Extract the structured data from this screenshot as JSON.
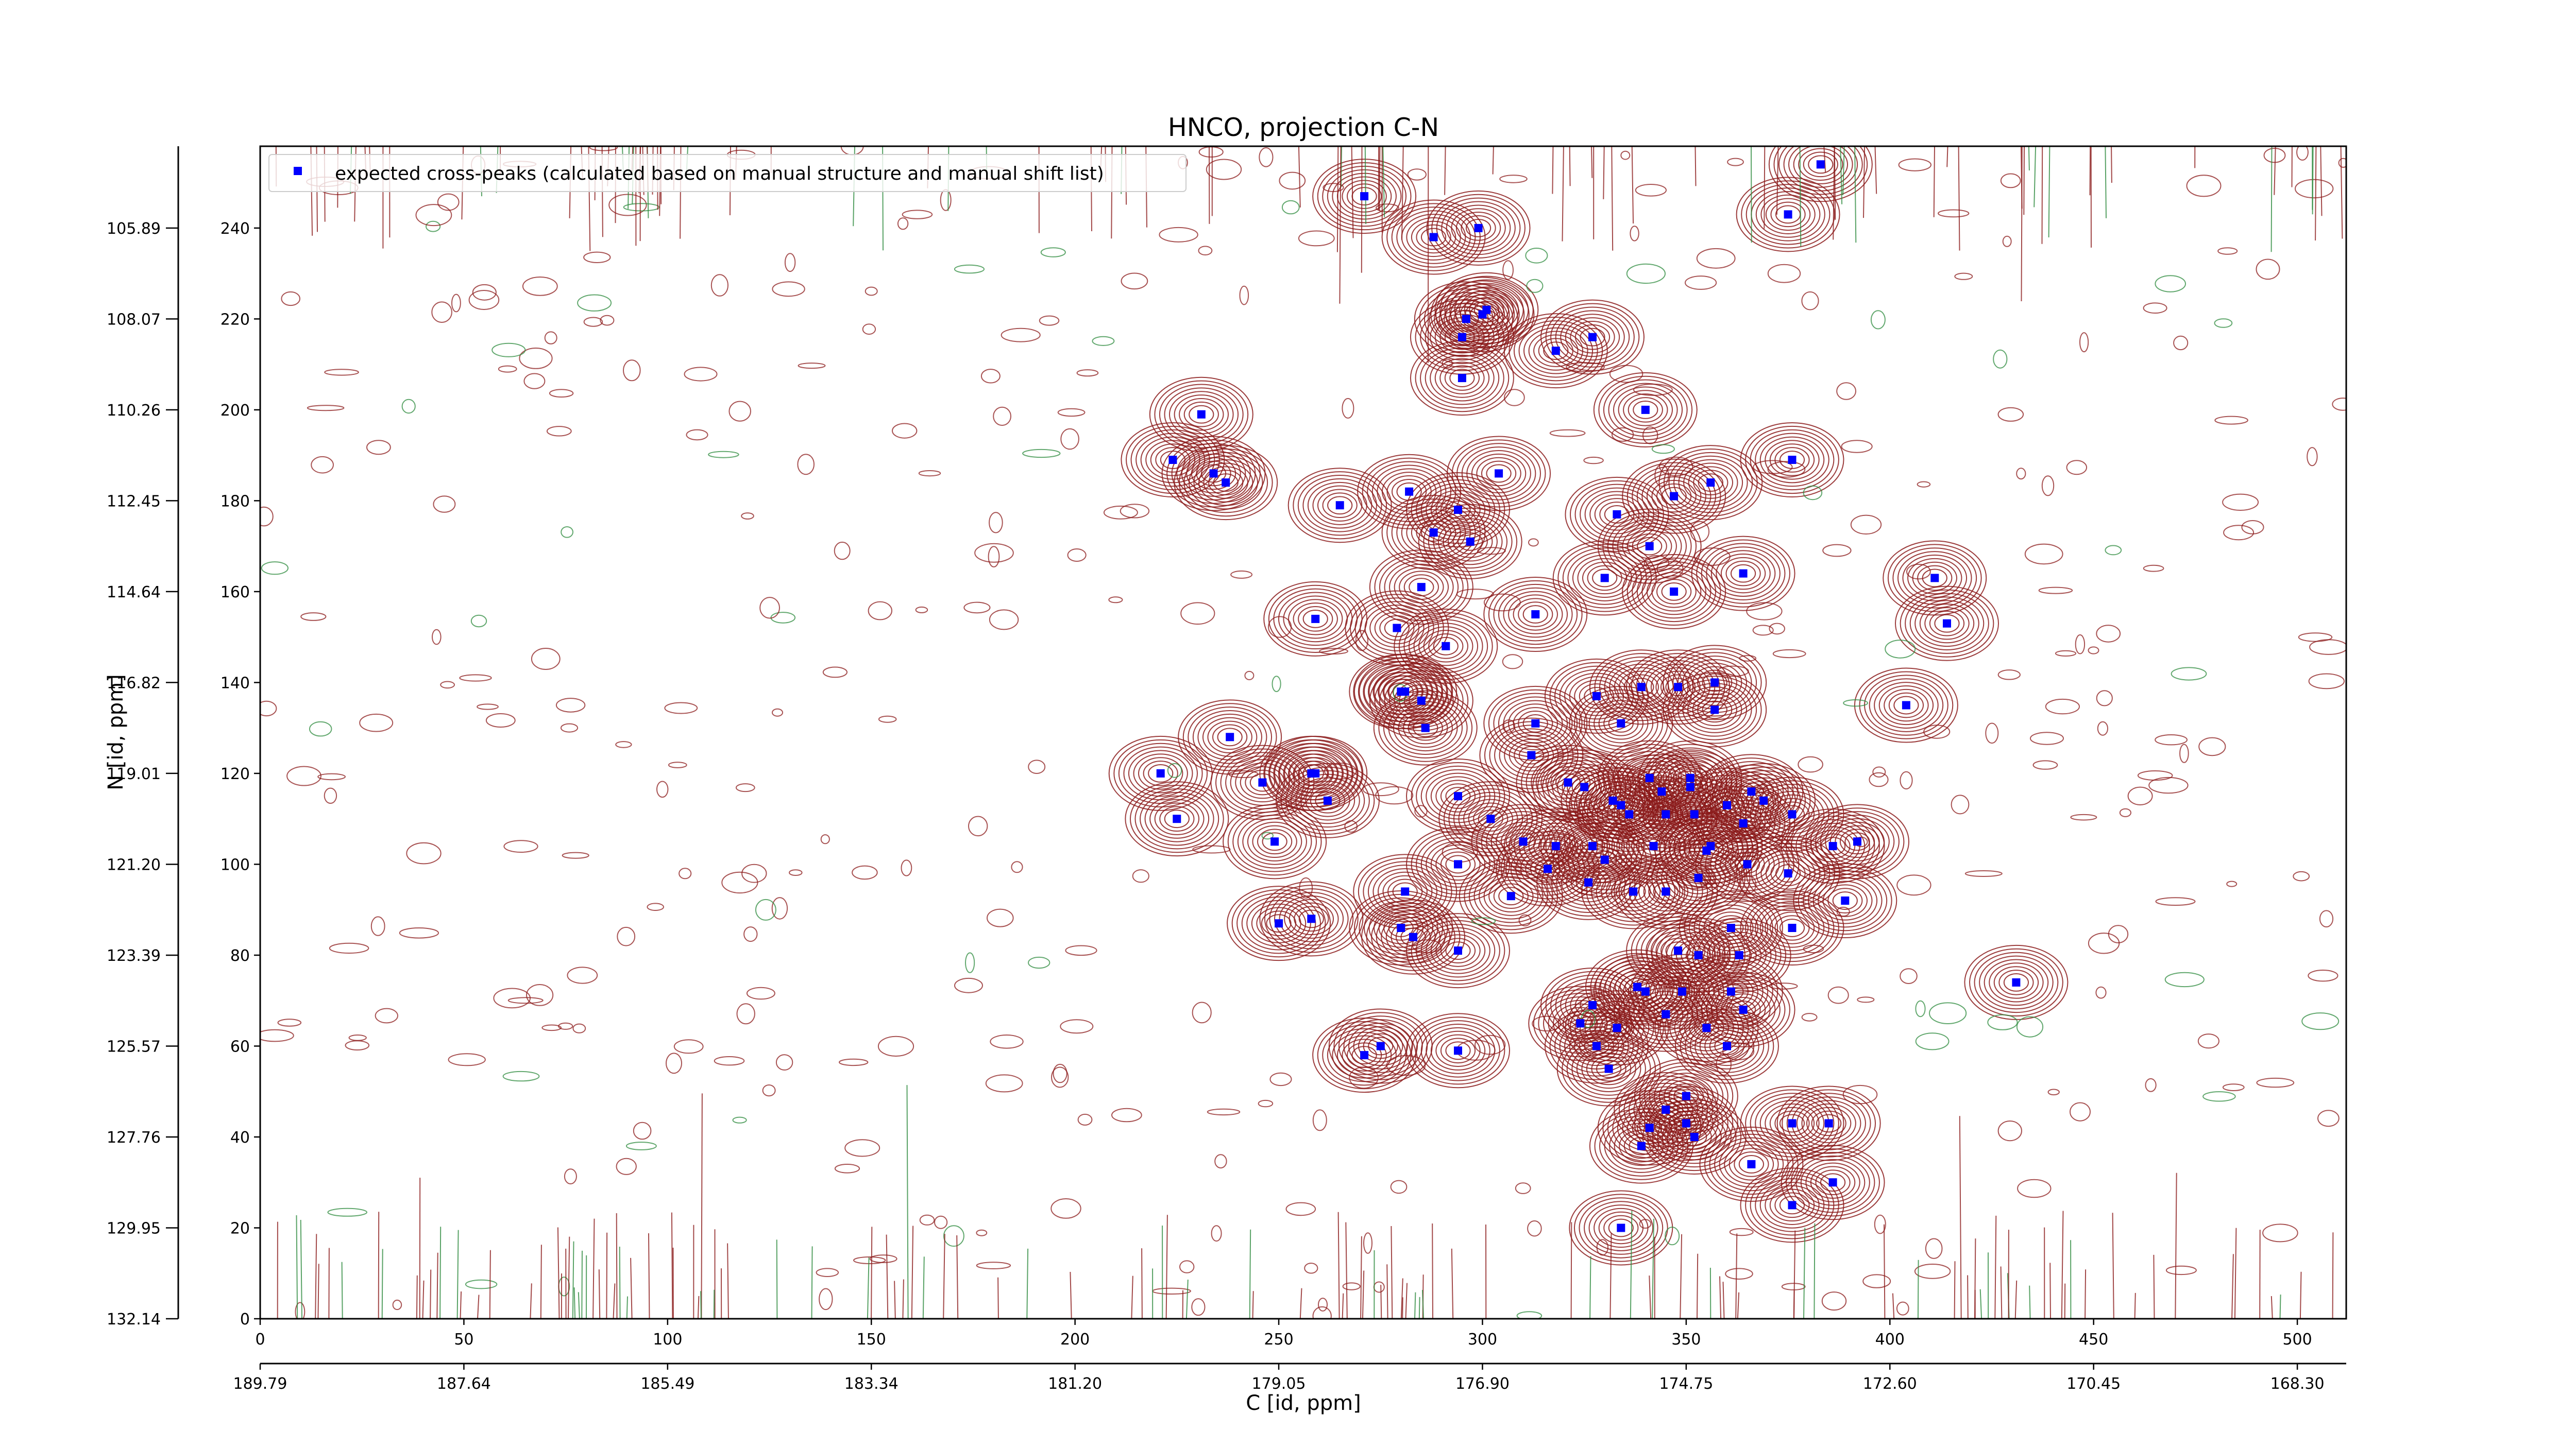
{
  "chart_data": {
    "type": "scatter",
    "title": "HNCO, projection C-N",
    "xlabel": "C [id, ppm]",
    "ylabel": "N [id, ppm]",
    "x_index_range": [
      0,
      512
    ],
    "y_index_range": [
      0,
      258
    ],
    "x_ticks": [
      0,
      50,
      100,
      150,
      200,
      250,
      300,
      350,
      400,
      450,
      500
    ],
    "y_ticks": [
      0,
      20,
      40,
      60,
      80,
      100,
      120,
      140,
      160,
      180,
      200,
      220,
      240
    ],
    "x_ppm_labels": [
      "189.79",
      "187.64",
      "185.49",
      "183.34",
      "181.20",
      "179.05",
      "176.90",
      "174.75",
      "172.60",
      "170.45",
      "168.30"
    ],
    "y_ppm_labels": [
      "132.14",
      "129.95",
      "127.76",
      "125.57",
      "123.39",
      "121.20",
      "119.01",
      "116.82",
      "114.64",
      "112.45",
      "110.26",
      "108.07",
      "105.89"
    ],
    "grid": false,
    "legend_position": "top-left",
    "contour_colors": {
      "positive": "#8b1a1a",
      "negative": "#2e8b3e"
    },
    "series": [
      {
        "name": "expected cross-peaks (calculated based on manual structure and manual shift list)",
        "color": "#0000ff",
        "marker": "square",
        "points": [
          [
            383,
            254
          ],
          [
            271,
            247
          ],
          [
            375,
            243
          ],
          [
            299,
            240
          ],
          [
            288,
            238
          ],
          [
            301,
            222
          ],
          [
            300,
            221
          ],
          [
            296,
            220
          ],
          [
            295,
            216
          ],
          [
            327,
            216
          ],
          [
            318,
            213
          ],
          [
            295,
            207
          ],
          [
            340,
            200
          ],
          [
            231,
            199
          ],
          [
            224,
            189
          ],
          [
            376,
            189
          ],
          [
            234,
            186
          ],
          [
            237,
            184
          ],
          [
            304,
            186
          ],
          [
            356,
            184
          ],
          [
            282,
            182
          ],
          [
            347,
            181
          ],
          [
            265,
            179
          ],
          [
            294,
            178
          ],
          [
            333,
            177
          ],
          [
            288,
            173
          ],
          [
            297,
            171
          ],
          [
            341,
            170
          ],
          [
            364,
            164
          ],
          [
            330,
            163
          ],
          [
            411,
            163
          ],
          [
            285,
            161
          ],
          [
            347,
            160
          ],
          [
            259,
            154
          ],
          [
            313,
            155
          ],
          [
            414,
            153
          ],
          [
            279,
            152
          ],
          [
            291,
            148
          ],
          [
            280,
            138
          ],
          [
            281,
            138
          ],
          [
            357,
            140
          ],
          [
            348,
            139
          ],
          [
            339,
            139
          ],
          [
            328,
            137
          ],
          [
            285,
            136
          ],
          [
            357,
            134
          ],
          [
            313,
            131
          ],
          [
            334,
            131
          ],
          [
            404,
            135
          ],
          [
            286,
            130
          ],
          [
            238,
            128
          ],
          [
            312,
            124
          ],
          [
            321,
            118
          ],
          [
            325,
            117
          ],
          [
            341,
            119
          ],
          [
            351,
            119
          ],
          [
            221,
            120
          ],
          [
            258,
            120
          ],
          [
            259,
            120
          ],
          [
            246,
            118
          ],
          [
            294,
            115
          ],
          [
            366,
            116
          ],
          [
            262,
            114
          ],
          [
            332,
            114
          ],
          [
            344,
            116
          ],
          [
            351,
            117
          ],
          [
            334,
            113
          ],
          [
            336,
            111
          ],
          [
            360,
            113
          ],
          [
            345,
            111
          ],
          [
            369,
            114
          ],
          [
            376,
            111
          ],
          [
            352,
            111
          ],
          [
            225,
            110
          ],
          [
            364,
            109
          ],
          [
            302,
            110
          ],
          [
            310,
            105
          ],
          [
            318,
            104
          ],
          [
            327,
            104
          ],
          [
            249,
            105
          ],
          [
            342,
            104
          ],
          [
            386,
            104
          ],
          [
            392,
            105
          ],
          [
            330,
            101
          ],
          [
            316,
            99
          ],
          [
            294,
            100
          ],
          [
            355,
            103
          ],
          [
            356,
            104
          ],
          [
            365,
            100
          ],
          [
            353,
            97
          ],
          [
            375,
            98
          ],
          [
            326,
            96
          ],
          [
            307,
            93
          ],
          [
            337,
            94
          ],
          [
            345,
            94
          ],
          [
            281,
            94
          ],
          [
            389,
            92
          ],
          [
            258,
            88
          ],
          [
            250,
            87
          ],
          [
            376,
            86
          ],
          [
            280,
            86
          ],
          [
            283,
            84
          ],
          [
            361,
            86
          ],
          [
            348,
            81
          ],
          [
            294,
            81
          ],
          [
            353,
            80
          ],
          [
            363,
            80
          ],
          [
            431,
            74
          ],
          [
            338,
            73
          ],
          [
            340,
            72
          ],
          [
            349,
            72
          ],
          [
            361,
            72
          ],
          [
            327,
            69
          ],
          [
            364,
            68
          ],
          [
            324,
            65
          ],
          [
            345,
            67
          ],
          [
            333,
            64
          ],
          [
            355,
            64
          ],
          [
            275,
            60
          ],
          [
            328,
            60
          ],
          [
            294,
            59
          ],
          [
            360,
            60
          ],
          [
            271,
            58
          ],
          [
            331,
            55
          ],
          [
            350,
            49
          ],
          [
            345,
            46
          ],
          [
            376,
            43
          ],
          [
            385,
            43
          ],
          [
            350,
            43
          ],
          [
            341,
            42
          ],
          [
            352,
            40
          ],
          [
            339,
            38
          ],
          [
            366,
            34
          ],
          [
            386,
            30
          ],
          [
            376,
            25
          ],
          [
            334,
            20
          ]
        ]
      }
    ]
  }
}
